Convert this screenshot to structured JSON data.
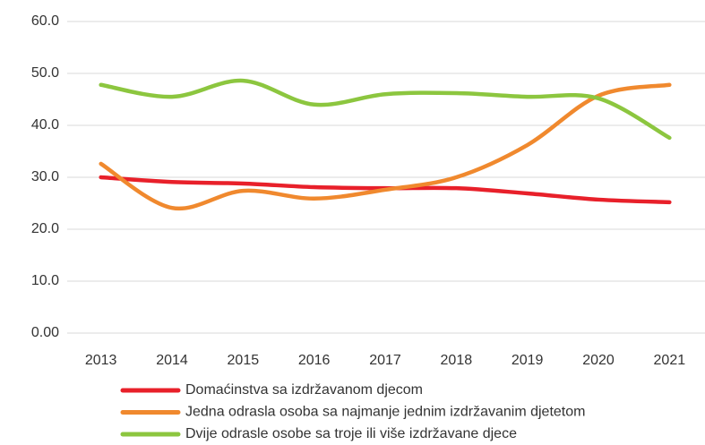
{
  "chart_data": {
    "type": "line",
    "categories": [
      "2013",
      "2014",
      "2015",
      "2016",
      "2017",
      "2018",
      "2019",
      "2020",
      "2021"
    ],
    "series": [
      {
        "name": "Domaćinstva sa izdržavanom djecom",
        "color": "#e8202a",
        "values": [
          30.0,
          29.1,
          28.8,
          28.1,
          27.9,
          27.9,
          26.9,
          25.7,
          25.2
        ]
      },
      {
        "name": "Jedna odrasla osoba sa najmanje jednim izdržavanim djetetom",
        "color": "#f0892e",
        "values": [
          32.6,
          24.1,
          27.4,
          25.9,
          27.6,
          30.0,
          36.2,
          45.7,
          47.8
        ]
      },
      {
        "name": "Dvije odrasle osobe sa troje ili više izdržavane djece",
        "color": "#8cc63f",
        "values": [
          47.8,
          45.5,
          48.6,
          44.0,
          46.0,
          46.2,
          45.5,
          45.2,
          37.6
        ]
      }
    ],
    "ylim": [
      0,
      60
    ],
    "yticks": [
      {
        "value": 0,
        "label": "0.00"
      },
      {
        "value": 10,
        "label": "10.0"
      },
      {
        "value": 20,
        "label": "20.0"
      },
      {
        "value": 30,
        "label": "30.0"
      },
      {
        "value": 40,
        "label": "40.0"
      },
      {
        "value": 50,
        "label": "50.0"
      },
      {
        "value": 60,
        "label": "60.0"
      }
    ],
    "grid": true,
    "legend": "bottom"
  }
}
